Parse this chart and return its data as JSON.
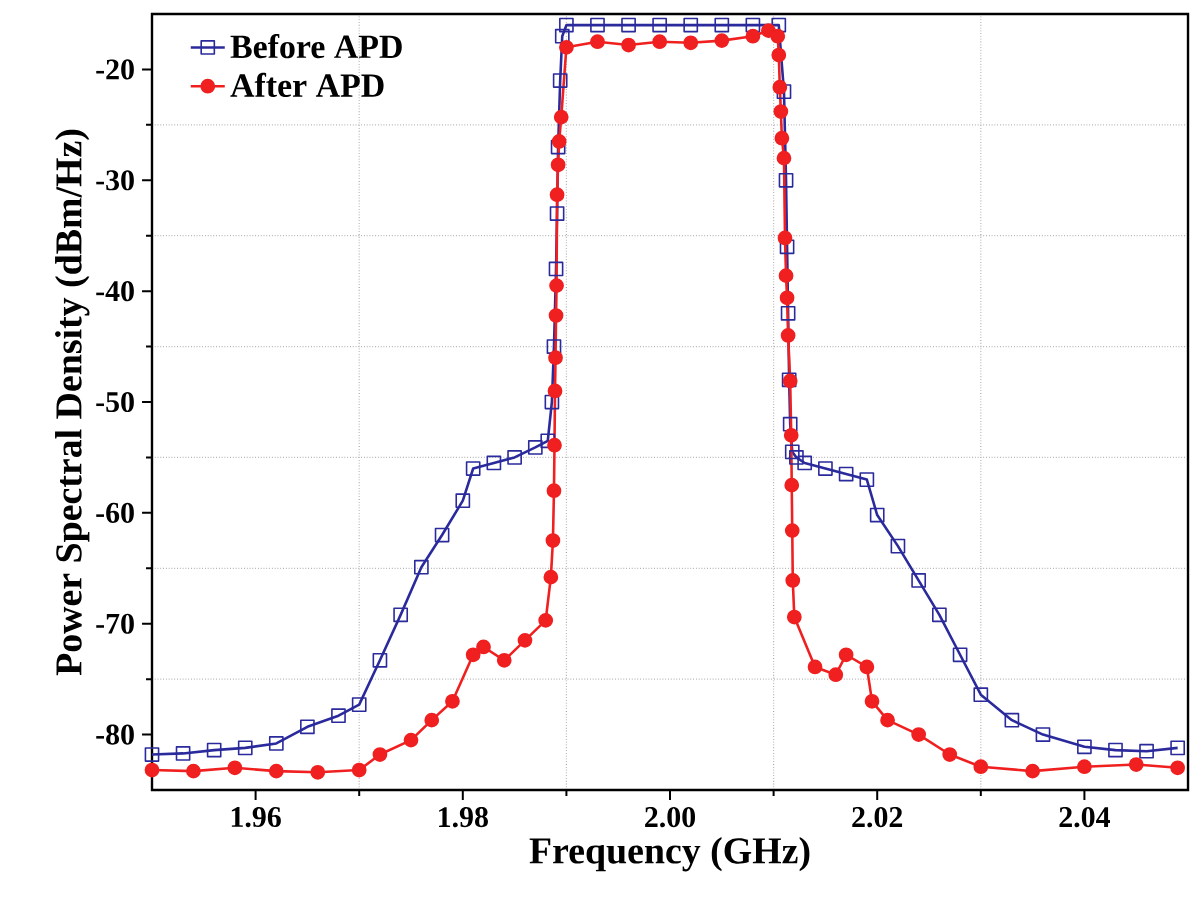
{
  "chart_data": {
    "type": "line",
    "xlabel": "Frequency (GHz)",
    "ylabel": "Power Spectral Density (dBm/Hz)",
    "xlim": [
      1.95,
      2.05
    ],
    "ylim": [
      -85,
      -15
    ],
    "xticks": [
      1.96,
      1.98,
      {
        "value": 2.0,
        "label": "2.00"
      },
      2.02,
      2.04
    ],
    "yticks": [
      -80,
      -70,
      -60,
      -50,
      -40,
      -30,
      -20
    ],
    "grid": true,
    "legend": "top left",
    "line_style": "solid",
    "series": [
      {
        "name": "Before APD",
        "color": "#2a2a9c",
        "marker": "square",
        "x": [
          1.95,
          1.953,
          1.956,
          1.959,
          1.962,
          1.965,
          1.968,
          1.97,
          1.972,
          1.974,
          1.976,
          1.978,
          1.98,
          1.981,
          1.983,
          1.985,
          1.987,
          1.9882,
          1.9886,
          1.9888,
          1.989,
          1.9891,
          1.9892,
          1.9894,
          1.9896,
          1.99,
          1.993,
          1.996,
          1.999,
          2.002,
          2.005,
          2.008,
          2.0105,
          2.011,
          2.0112,
          2.0113,
          2.0114,
          2.0115,
          2.0116,
          2.0118,
          2.0122,
          2.013,
          2.015,
          2.017,
          2.019,
          2.02,
          2.022,
          2.024,
          2.026,
          2.028,
          2.03,
          2.033,
          2.036,
          2.04,
          2.043,
          2.046,
          2.049
        ],
        "values": [
          -81.8,
          -81.7,
          -81.4,
          -81.2,
          -80.8,
          -79.3,
          -78.3,
          -77.3,
          -73.3,
          -69.2,
          -64.9,
          -62,
          -58.9,
          -56,
          -55.5,
          -55,
          -54.1,
          -53.5,
          -50,
          -45,
          -38,
          -33,
          -27,
          -21,
          -17,
          -16,
          -16,
          -16,
          -16,
          -16,
          -16,
          -16,
          -16,
          -22,
          -30,
          -36,
          -42,
          -48,
          -52,
          -54.5,
          -55,
          -55.5,
          -56,
          -56.5,
          -57,
          -60.2,
          -63,
          -66.1,
          -69.2,
          -72.8,
          -76.4,
          -78.7,
          -80,
          -81.1,
          -81.4,
          -81.5,
          -81.2
        ]
      },
      {
        "name": "After APD",
        "color": "#f02020",
        "marker": "circle",
        "x": [
          1.95,
          1.954,
          1.958,
          1.962,
          1.966,
          1.97,
          1.972,
          1.975,
          1.977,
          1.979,
          1.981,
          1.982,
          1.984,
          1.986,
          1.988,
          1.9885,
          1.9887,
          1.9888,
          1.98885,
          1.9889,
          1.98895,
          1.989,
          1.98905,
          1.9891,
          1.9892,
          1.9893,
          1.9895,
          1.99,
          1.993,
          1.996,
          1.999,
          2.002,
          2.005,
          2.008,
          2.0095,
          2.0104,
          2.0105,
          2.0106,
          2.0107,
          2.0108,
          2.011,
          2.0111,
          2.0112,
          2.0113,
          2.0114,
          2.0116,
          2.0117,
          2.01175,
          2.0118,
          2.01185,
          2.012,
          2.014,
          2.016,
          2.017,
          2.019,
          2.0195,
          2.021,
          2.024,
          2.027,
          2.03,
          2.035,
          2.04,
          2.045,
          2.049
        ],
        "values": [
          -83.2,
          -83.3,
          -83.0,
          -83.3,
          -83.4,
          -83.2,
          -81.8,
          -80.5,
          -78.7,
          -77,
          -72.8,
          -72.1,
          -73.3,
          -71.5,
          -69.7,
          -65.8,
          -62.5,
          -58,
          -53.9,
          -49,
          -46,
          -42.2,
          -39.5,
          -31.3,
          -28.6,
          -26.5,
          -24.3,
          -18,
          -17.5,
          -17.8,
          -17.5,
          -17.6,
          -17.4,
          -17,
          -16.5,
          -17,
          -18.7,
          -21.6,
          -23.8,
          -26.2,
          -28,
          -35.2,
          -38.6,
          -40.6,
          -44,
          -48.1,
          -53,
          -57.5,
          -61.6,
          -66.1,
          -69.4,
          -73.9,
          -74.6,
          -72.8,
          -73.9,
          -77,
          -78.7,
          -80,
          -81.8,
          -82.9,
          -83.3,
          -82.9,
          -82.7,
          -83
        ]
      }
    ]
  }
}
